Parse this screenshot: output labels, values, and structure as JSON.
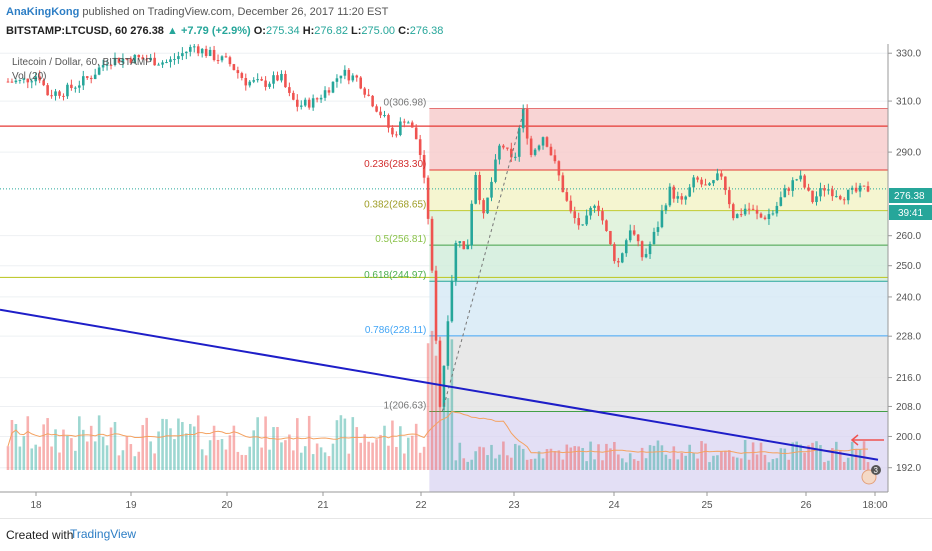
{
  "header": {
    "author": "AnaKingKong",
    "published": "published on TradingView.com, December 26, 2017 11:20 EST",
    "symbol": "BITSTAMP:LTCUSD, 60",
    "last": "276.38",
    "change_arrow": "▲",
    "change": "+7.79 (+2.9%)",
    "o_label": "O:",
    "o": "275.34",
    "h_label": "H:",
    "h": "276.82",
    "l_label": "L:",
    "l": "275.00",
    "c_label": "C:",
    "c": "276.38"
  },
  "legend": {
    "title": "Litecoin / Dollar, 60, BITSTAMP",
    "vol": "Vol (20)"
  },
  "price_labels": {
    "last": "276.38",
    "countdown": "39:41",
    "badge": "3"
  },
  "fib_labels": [
    "0(306.98)",
    "0.236(283.30)",
    "0.382(268.65)",
    "0.5(256.81)",
    "0.618(244.97)",
    "0.786(228.11)",
    "1(206.63)"
  ],
  "footer": {
    "created": "Created with",
    "brand": "TradingView"
  },
  "colors": {
    "up": "#26a69a",
    "down": "#ef5350",
    "trendline": "#1e1ec8",
    "arrow": "#ef5350",
    "fib_1": "#4caf50",
    "fib_0": "#e57373"
  },
  "chart_data": {
    "type": "candlestick",
    "title": "Litecoin / Dollar, 60, BITSTAMP",
    "timeframe": "60",
    "x_ticks": [
      "18",
      "19",
      "20",
      "21",
      "22",
      "23",
      "24",
      "25",
      "26",
      "18:00"
    ],
    "y_ticks": [
      192,
      200,
      208,
      216,
      228,
      240,
      250,
      260,
      290,
      310,
      330
    ],
    "ylim": [
      186,
      334
    ],
    "y_scale": "log",
    "last_price": 276.38,
    "horizontal_lines": [
      {
        "price": 300,
        "color": "#e53935"
      },
      {
        "price": 246.2,
        "color": "#c0ca33"
      }
    ],
    "fibonacci": [
      {
        "level": 0,
        "price": 306.98
      },
      {
        "level": 0.236,
        "price": 283.3
      },
      {
        "level": 0.382,
        "price": 268.65
      },
      {
        "level": 0.5,
        "price": 256.81
      },
      {
        "level": 0.618,
        "price": 244.97
      },
      {
        "level": 0.786,
        "price": 228.11
      },
      {
        "level": 1,
        "price": 206.63
      }
    ],
    "trendline": {
      "from_price": 236,
      "to_price": 194
    },
    "price_path_keypoints": [
      {
        "t": 0.0,
        "p": 318
      },
      {
        "t": 0.02,
        "p": 318
      },
      {
        "t": 0.04,
        "p": 321
      },
      {
        "t": 0.05,
        "p": 313
      },
      {
        "t": 0.07,
        "p": 314
      },
      {
        "t": 0.09,
        "p": 318
      },
      {
        "t": 0.1,
        "p": 320
      },
      {
        "t": 0.12,
        "p": 327
      },
      {
        "t": 0.15,
        "p": 328
      },
      {
        "t": 0.19,
        "p": 326
      },
      {
        "t": 0.22,
        "p": 333
      },
      {
        "t": 0.24,
        "p": 329
      },
      {
        "t": 0.26,
        "p": 326
      },
      {
        "t": 0.28,
        "p": 318
      },
      {
        "t": 0.3,
        "p": 317
      },
      {
        "t": 0.32,
        "p": 320
      },
      {
        "t": 0.33,
        "p": 312
      },
      {
        "t": 0.34,
        "p": 308
      },
      {
        "t": 0.36,
        "p": 310
      },
      {
        "t": 0.38,
        "p": 317
      },
      {
        "t": 0.39,
        "p": 322
      },
      {
        "t": 0.41,
        "p": 319
      },
      {
        "t": 0.42,
        "p": 313
      },
      {
        "t": 0.44,
        "p": 303
      },
      {
        "t": 0.45,
        "p": 296
      },
      {
        "t": 0.465,
        "p": 304
      },
      {
        "t": 0.48,
        "p": 293
      },
      {
        "t": 0.49,
        "p": 270
      },
      {
        "t": 0.505,
        "p": 206.6
      },
      {
        "t": 0.515,
        "p": 238
      },
      {
        "t": 0.525,
        "p": 262
      },
      {
        "t": 0.535,
        "p": 252
      },
      {
        "t": 0.545,
        "p": 284
      },
      {
        "t": 0.555,
        "p": 266
      },
      {
        "t": 0.565,
        "p": 280
      },
      {
        "t": 0.575,
        "p": 294
      },
      {
        "t": 0.59,
        "p": 285
      },
      {
        "t": 0.6,
        "p": 307
      },
      {
        "t": 0.61,
        "p": 289
      },
      {
        "t": 0.625,
        "p": 297
      },
      {
        "t": 0.64,
        "p": 283
      },
      {
        "t": 0.655,
        "p": 268
      },
      {
        "t": 0.67,
        "p": 262
      },
      {
        "t": 0.685,
        "p": 273
      },
      {
        "t": 0.7,
        "p": 258
      },
      {
        "t": 0.71,
        "p": 250
      },
      {
        "t": 0.725,
        "p": 263
      },
      {
        "t": 0.74,
        "p": 252
      },
      {
        "t": 0.755,
        "p": 262
      },
      {
        "t": 0.77,
        "p": 276
      },
      {
        "t": 0.785,
        "p": 271
      },
      {
        "t": 0.8,
        "p": 280
      },
      {
        "t": 0.815,
        "p": 276
      },
      {
        "t": 0.83,
        "p": 282
      },
      {
        "t": 0.845,
        "p": 266
      },
      {
        "t": 0.86,
        "p": 270
      },
      {
        "t": 0.875,
        "p": 266
      },
      {
        "t": 0.89,
        "p": 268
      },
      {
        "t": 0.905,
        "p": 276
      },
      {
        "t": 0.92,
        "p": 281
      },
      {
        "t": 0.935,
        "p": 272
      },
      {
        "t": 0.95,
        "p": 277
      },
      {
        "t": 0.97,
        "p": 274
      },
      {
        "t": 1.0,
        "p": 276.4
      }
    ],
    "candle_count": 218,
    "volume_ma_period": 20
  }
}
